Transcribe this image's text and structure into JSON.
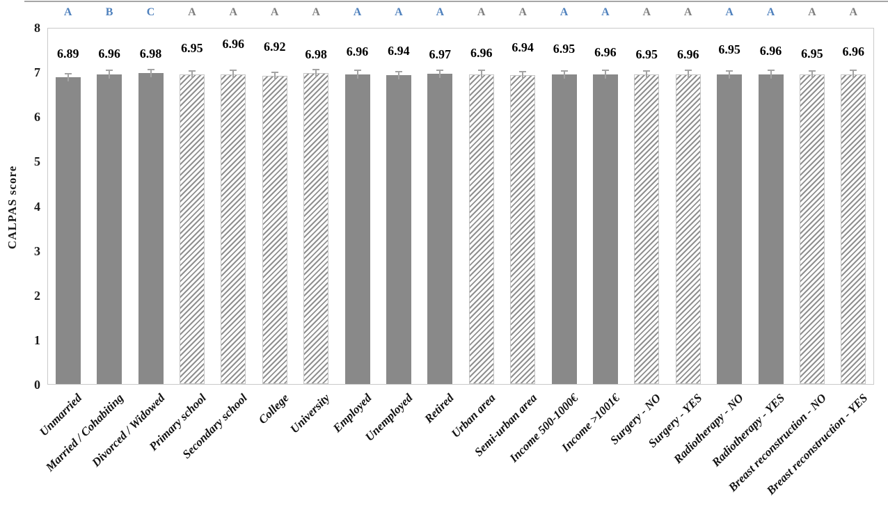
{
  "chart_data": {
    "type": "bar",
    "title": "",
    "xlabel": "",
    "ylabel": "CALPAS score",
    "ylim": [
      0,
      8
    ],
    "yticks": [
      0,
      1,
      2,
      3,
      4,
      5,
      6,
      7,
      8
    ],
    "grid": false,
    "legend_position": "none",
    "error_up": 0.1,
    "categories": [
      "Unmarried",
      "Married / Cohabiting",
      "Divorced / Widowed",
      "Primary school",
      "Secondary school",
      "College",
      "University",
      "Employed",
      "Unemployed",
      "Retired",
      "Urban area",
      "Semi-urban area",
      "Income 500-1000€",
      "Income >1001€",
      "Surgery - NO",
      "Surgery - YES",
      "Radiotherapy - NO",
      "Radiotherapy - YES",
      "Breast reconstruction - NO",
      "Breast reconstruction - YES"
    ],
    "values": [
      6.89,
      6.96,
      6.98,
      6.95,
      6.96,
      6.92,
      6.98,
      6.96,
      6.94,
      6.97,
      6.96,
      6.94,
      6.95,
      6.96,
      6.95,
      6.96,
      6.95,
      6.96,
      6.95,
      6.96
    ],
    "value_labels": [
      "6.89",
      "6.96",
      "6.98",
      "6.95",
      "6.96",
      "6.92",
      "6.98",
      "6.96",
      "6.94",
      "6.97",
      "6.96",
      "6.94",
      "6.95",
      "6.96",
      "6.95",
      "6.96",
      "6.95",
      "6.96",
      "6.95",
      "6.96"
    ],
    "bar_styles": [
      "solid",
      "solid",
      "solid",
      "hatch",
      "hatch",
      "hatch",
      "hatch",
      "solid",
      "solid",
      "solid",
      "hatch",
      "hatch",
      "solid",
      "solid",
      "hatch",
      "hatch",
      "solid",
      "solid",
      "hatch",
      "hatch"
    ],
    "letters": [
      "A",
      "B",
      "C",
      "A",
      "A",
      "A",
      "A",
      "A",
      "A",
      "A",
      "A",
      "A",
      "A",
      "A",
      "A",
      "A",
      "A",
      "A",
      "A",
      "A"
    ],
    "letter_colors": [
      "blue",
      "blue",
      "blue",
      "gray",
      "gray",
      "gray",
      "gray",
      "blue",
      "blue",
      "blue",
      "gray",
      "gray",
      "blue",
      "blue",
      "gray",
      "gray",
      "blue",
      "blue",
      "gray",
      "gray"
    ],
    "layout_hints": {
      "value_label_y_centers": [
        77,
        77,
        77,
        69,
        63,
        67,
        78,
        74,
        73,
        78,
        76,
        68,
        70,
        75,
        78,
        78,
        71,
        73,
        77,
        74
      ],
      "letter_row_y_center": 18
    },
    "colors": {
      "solid_fill": "#898989",
      "hatch_stripe": "#8f8f8f",
      "hatch_border": "#c4c4c4",
      "letter_blue": "#4f81bd",
      "letter_gray": "#7f7f7f",
      "error_bar": "#a3a3a3",
      "plot_border": "#c9c9c9",
      "text": "#000000"
    }
  }
}
